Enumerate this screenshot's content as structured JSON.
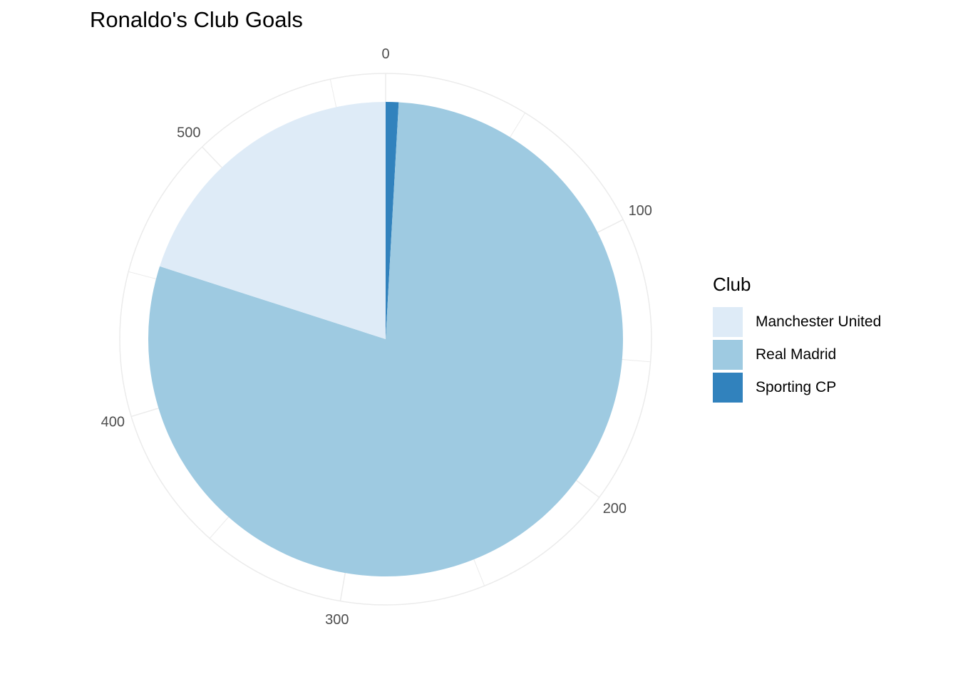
{
  "chart_data": {
    "type": "pie",
    "title": "Ronaldo's Club Goals",
    "coord": "polar",
    "legend_position": "right",
    "grid": true,
    "axis_ticks": [
      "0",
      "100",
      "200",
      "300",
      "400",
      "500"
    ],
    "axis_tick_values": [
      0,
      100,
      200,
      300,
      400,
      500
    ],
    "axis_max": 569,
    "series_order": [
      "Sporting CP",
      "Real Madrid",
      "Manchester United"
    ],
    "slices": [
      {
        "label": "Sporting CP",
        "value": 5,
        "color": "#3182bd"
      },
      {
        "label": "Real Madrid",
        "value": 450,
        "color": "#9ecae1"
      },
      {
        "label": "Manchester United",
        "value": 114,
        "color": "#deebf7"
      }
    ]
  },
  "legend": {
    "title": "Club",
    "items": [
      {
        "label": "Manchester United",
        "color": "#deebf7"
      },
      {
        "label": "Real Madrid",
        "color": "#9ecae1"
      },
      {
        "label": "Sporting CP",
        "color": "#3182bd"
      }
    ]
  },
  "colors": {
    "grid": "#ebebeb",
    "tick_text": "#4d4d4d"
  }
}
